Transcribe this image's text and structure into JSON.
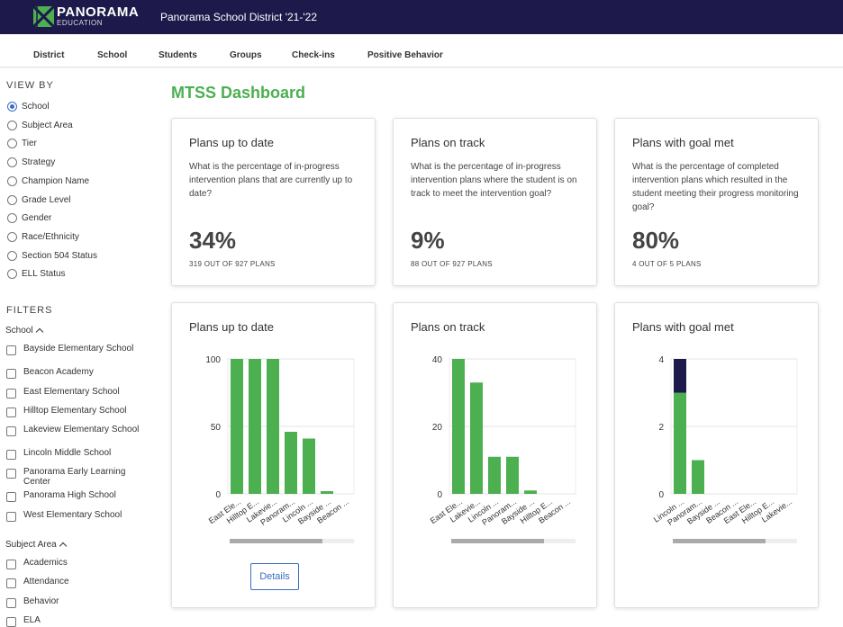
{
  "brand": {
    "name": "PANORAMA",
    "sub": "EDUCATION"
  },
  "district": "Panorama School District '21-'22",
  "nav": [
    "District",
    "School",
    "Students",
    "Groups",
    "Check-ins",
    "Positive Behavior"
  ],
  "sidebar": {
    "view_by_label": "VIEW BY",
    "view_by": [
      {
        "label": "School",
        "selected": true
      },
      {
        "label": "Subject Area",
        "selected": false
      },
      {
        "label": "Tier",
        "selected": false
      },
      {
        "label": "Strategy",
        "selected": false
      },
      {
        "label": "Champion Name",
        "selected": false
      },
      {
        "label": "Grade Level",
        "selected": false
      },
      {
        "label": "Gender",
        "selected": false
      },
      {
        "label": "Race/Ethnicity",
        "selected": false
      },
      {
        "label": "Section 504 Status",
        "selected": false
      },
      {
        "label": "ELL Status",
        "selected": false
      }
    ],
    "filters_label": "FILTERS",
    "school_filter_label": "School",
    "schools": [
      "Bayside Elementary School",
      "Beacon Academy",
      "East Elementary School",
      "Hilltop Elementary School",
      "Lakeview Elementary School",
      "Lincoln Middle School",
      "Panorama Early Learning Center",
      "Panorama High School",
      "West Elementary School"
    ],
    "subject_filter_label": "Subject Area",
    "subjects": [
      "Academics",
      "Attendance",
      "Behavior",
      "ELA"
    ]
  },
  "dashboard_title": "MTSS Dashboard",
  "metrics": [
    {
      "title": "Plans up to date",
      "desc": "What is the percentage of in-progress intervention plans that are currently up to date?",
      "value": "34%",
      "sub": "319 OUT OF 927 PLANS"
    },
    {
      "title": "Plans on track",
      "desc": "What is the percentage of in-progress intervention plans where the student is on track to meet the intervention goal?",
      "value": "9%",
      "sub": "88 OUT OF 927 PLANS"
    },
    {
      "title": "Plans with goal met",
      "desc": "What is the percentage of completed intervention plans which resulted in the student meeting their progress monitoring goal?",
      "value": "80%",
      "sub": "4 OUT OF 5 PLANS"
    }
  ],
  "details_label": "Details",
  "colors": {
    "green": "#4caf50",
    "navy": "#1d1a4b",
    "blue": "#3a6cc4"
  },
  "chart_data": [
    {
      "type": "bar",
      "title": "Plans up to date",
      "categories": [
        "East Ele...",
        "Hilltop E...",
        "Lakevie...",
        "Panoram...",
        "Lincoln ...",
        "Bayside ...",
        "Beacon ..."
      ],
      "values": [
        100,
        100,
        100,
        46,
        41,
        2,
        0
      ],
      "yticks": [
        0,
        50,
        100
      ],
      "ylim": [
        0,
        100
      ]
    },
    {
      "type": "bar",
      "title": "Plans on track",
      "categories": [
        "East Ele...",
        "Lakevie...",
        "Lincoln ...",
        "Panoram...",
        "Bayside ...",
        "Hilltop E...",
        "Beacon ..."
      ],
      "values": [
        40,
        33,
        11,
        11,
        1,
        0,
        0
      ],
      "yticks": [
        0,
        20,
        40
      ],
      "ylim": [
        0,
        40
      ]
    },
    {
      "type": "bar",
      "stacked": true,
      "title": "Plans with goal met",
      "categories": [
        "Lincoln ...",
        "Panoram...",
        "Bayside ...",
        "Beacon ...",
        "East Ele...",
        "Hilltop E...",
        "Lakevie..."
      ],
      "series": [
        {
          "values": [
            3,
            1,
            0,
            0,
            0,
            0,
            0
          ]
        },
        {
          "values": [
            1,
            0,
            0,
            0,
            0,
            0,
            0
          ]
        }
      ],
      "yticks": [
        0,
        2,
        4
      ],
      "ylim": [
        0,
        4
      ]
    }
  ]
}
